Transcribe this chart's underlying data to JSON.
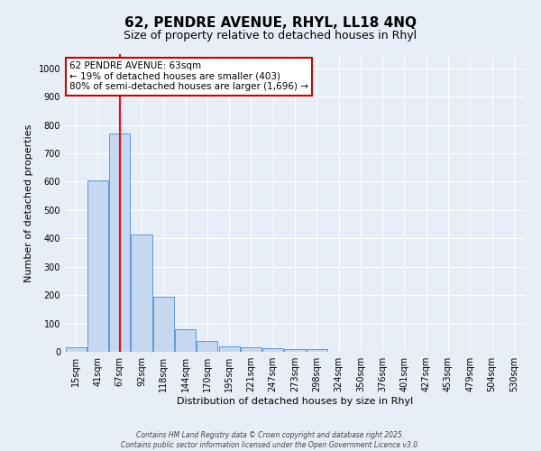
{
  "title_line1": "62, PENDRE AVENUE, RHYL, LL18 4NQ",
  "title_line2": "Size of property relative to detached houses in Rhyl",
  "xlabel": "Distribution of detached houses by size in Rhyl",
  "ylabel": "Number of detached properties",
  "categories": [
    "15sqm",
    "41sqm",
    "67sqm",
    "92sqm",
    "118sqm",
    "144sqm",
    "170sqm",
    "195sqm",
    "221sqm",
    "247sqm",
    "273sqm",
    "298sqm",
    "324sqm",
    "350sqm",
    "376sqm",
    "401sqm",
    "427sqm",
    "453sqm",
    "479sqm",
    "504sqm",
    "530sqm"
  ],
  "values": [
    15,
    605,
    770,
    415,
    195,
    78,
    38,
    18,
    15,
    12,
    10,
    8,
    0,
    0,
    0,
    0,
    0,
    0,
    0,
    0,
    0
  ],
  "bar_color": "#c5d8f0",
  "bar_edge_color": "#5b9bd5",
  "red_line_index": 2,
  "ylim": [
    0,
    1050
  ],
  "yticks": [
    0,
    100,
    200,
    300,
    400,
    500,
    600,
    700,
    800,
    900,
    1000
  ],
  "annotation_text_line1": "62 PENDRE AVENUE: 63sqm",
  "annotation_text_line2": "← 19% of detached houses are smaller (403)",
  "annotation_text_line3": "80% of semi-detached houses are larger (1,696) →",
  "annotation_box_facecolor": "#ffffff",
  "annotation_box_edgecolor": "#cc0000",
  "bg_color": "#e8eef8",
  "grid_color": "#ffffff",
  "footer_line1": "Contains HM Land Registry data © Crown copyright and database right 2025.",
  "footer_line2": "Contains public sector information licensed under the Open Government Licence v3.0."
}
